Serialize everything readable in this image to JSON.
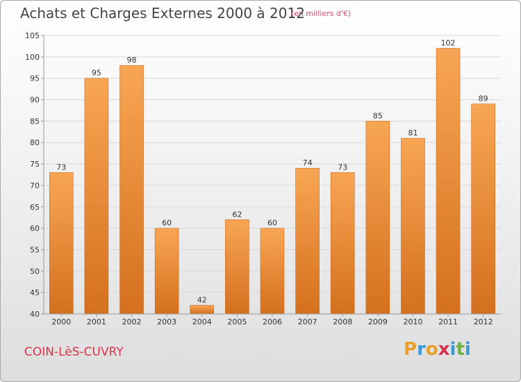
{
  "title": "Achats et Charges Externes 2000 à 2012",
  "subtitle": "(en milliers d'€)",
  "commune": "COIN-LèS-CUVRY",
  "logo": {
    "letters": [
      "P",
      "r",
      "o",
      "x",
      "i",
      "t",
      "i"
    ],
    "colors": [
      "#e8a02a",
      "#3c9ad8",
      "#e8a02a",
      "#d8324f",
      "#3c9ad8",
      "#6db33f",
      "#3c9ad8"
    ]
  },
  "colors": {
    "bar_light": "#f8a654",
    "bar_dark": "#d4701e",
    "grid": "#d9d9d9",
    "axis": "#999999"
  },
  "chart_data": {
    "type": "bar",
    "title": "Achats et Charges Externes 2000 à 2012",
    "subtitle": "(en milliers d'€)",
    "categories": [
      "2000",
      "2001",
      "2002",
      "2003",
      "2004",
      "2005",
      "2006",
      "2007",
      "2008",
      "2009",
      "2010",
      "2011",
      "2012"
    ],
    "values": [
      73,
      95,
      98,
      60,
      42,
      62,
      60,
      74,
      73,
      85,
      81,
      102,
      89
    ],
    "ylim": [
      40,
      105
    ],
    "yticks": [
      40,
      45,
      50,
      55,
      60,
      65,
      70,
      75,
      80,
      85,
      90,
      95,
      100,
      105
    ],
    "grid": true,
    "xlabel": "",
    "ylabel": ""
  }
}
